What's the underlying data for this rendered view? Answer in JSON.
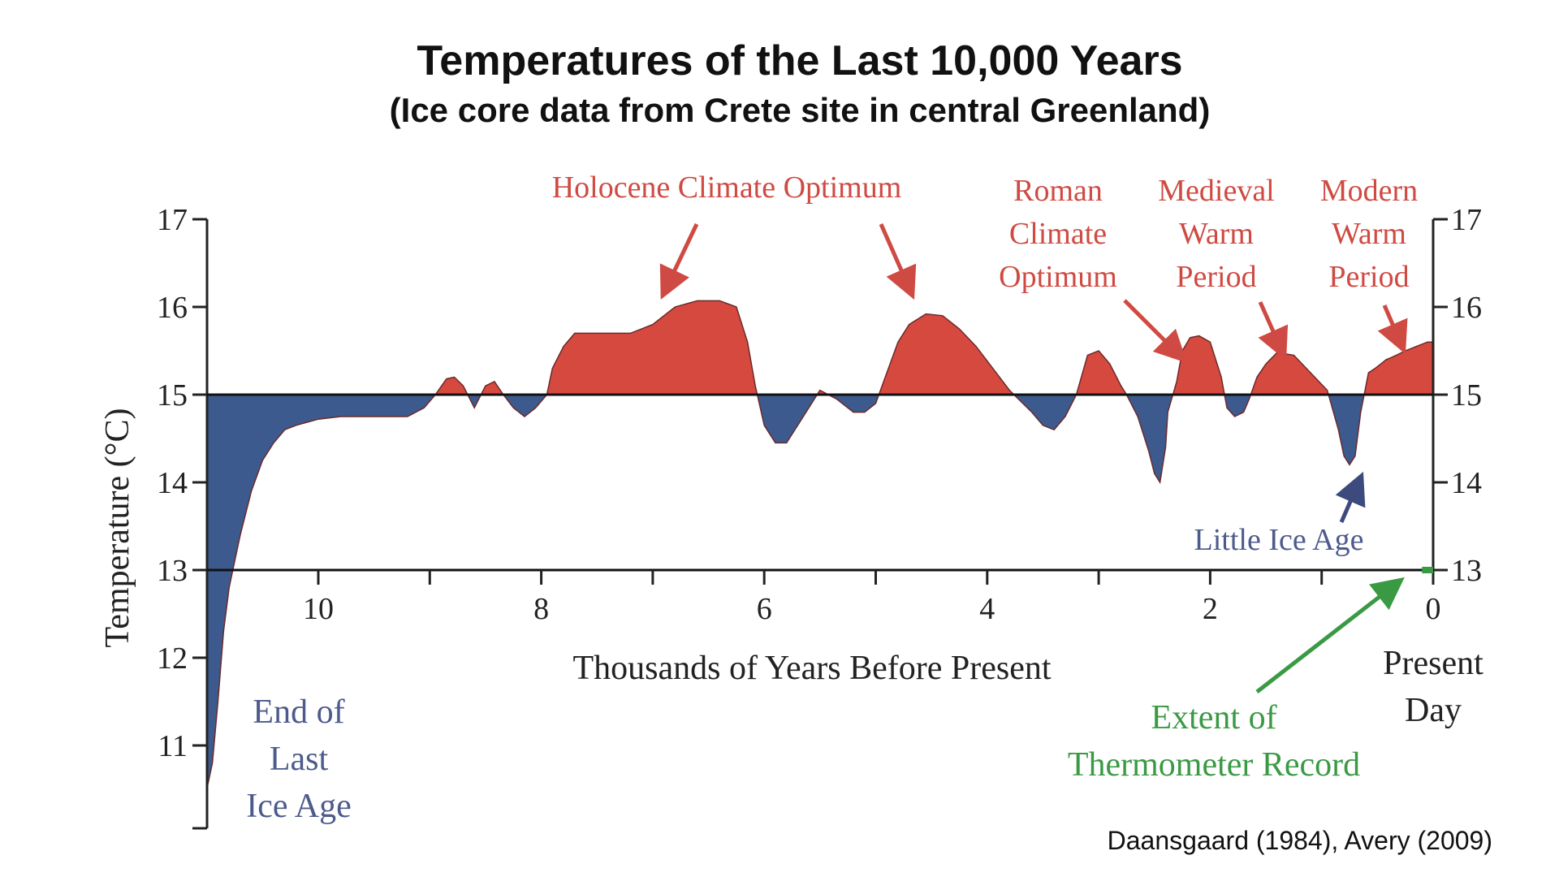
{
  "chart_data": {
    "type": "area",
    "title": "Temperatures of the Last 10,000 Years",
    "subtitle": "(Ice core data from Crete site in central Greenland)",
    "xlabel": "Thousands of Years Before Present",
    "ylabel": "Temperature (°C)",
    "xlim": [
      11,
      0
    ],
    "ylim": [
      10.3,
      17
    ],
    "baseline": 15,
    "x_ticks": [
      10,
      8,
      6,
      4,
      2,
      0
    ],
    "x_tick_labels": [
      "10",
      "8",
      "6",
      "4",
      "2",
      "0"
    ],
    "y_ticks": [
      17,
      16,
      15,
      14,
      13,
      12,
      11
    ],
    "y_tick_labels": [
      "17",
      "16",
      "15",
      "14",
      "13",
      "12",
      "11"
    ],
    "y_ticks_right": [
      17,
      16,
      15,
      14,
      13
    ],
    "y_tick_labels_right": [
      "17",
      "16",
      "15",
      "14",
      "13"
    ],
    "colors": {
      "above": "#d6493f",
      "below": "#3c5a8e",
      "annot_red": "#cf4a42",
      "annot_blue": "#4d5a8c",
      "annot_green": "#3a9a44",
      "axis": "#222222"
    },
    "series": [
      {
        "name": "Temperature",
        "x": [
          11.0,
          10.95,
          10.9,
          10.85,
          10.8,
          10.75,
          10.7,
          10.6,
          10.5,
          10.4,
          10.3,
          10.2,
          10.0,
          9.8,
          9.5,
          9.2,
          9.05,
          8.95,
          8.85,
          8.78,
          8.7,
          8.6,
          8.5,
          8.42,
          8.34,
          8.25,
          8.15,
          8.05,
          7.95,
          7.9,
          7.8,
          7.7,
          7.6,
          7.45,
          7.2,
          7.0,
          6.8,
          6.6,
          6.4,
          6.25,
          6.15,
          6.08,
          6.0,
          5.9,
          5.8,
          5.65,
          5.5,
          5.35,
          5.2,
          5.1,
          5.0,
          4.9,
          4.8,
          4.7,
          4.55,
          4.4,
          4.25,
          4.1,
          3.95,
          3.8,
          3.6,
          3.5,
          3.4,
          3.3,
          3.2,
          3.1,
          3.0,
          2.9,
          2.8,
          2.75,
          2.65,
          2.55,
          2.5,
          2.45,
          2.4,
          2.38,
          2.3,
          2.25,
          2.18,
          2.1,
          2.0,
          1.9,
          1.85,
          1.78,
          1.7,
          1.65,
          1.58,
          1.5,
          1.4,
          1.25,
          1.1,
          0.95,
          0.85,
          0.8,
          0.75,
          0.7,
          0.65,
          0.58,
          0.52,
          0.47,
          0.42,
          0.38,
          0.33,
          0.25,
          0.15,
          0.05,
          0.0
        ],
        "y": [
          10.5,
          10.8,
          11.5,
          12.3,
          12.8,
          13.1,
          13.4,
          13.9,
          14.25,
          14.45,
          14.6,
          14.65,
          14.72,
          14.75,
          14.75,
          14.75,
          14.85,
          15.0,
          15.18,
          15.2,
          15.1,
          14.85,
          15.1,
          15.15,
          15.0,
          14.85,
          14.75,
          14.85,
          15.0,
          15.3,
          15.55,
          15.7,
          15.7,
          15.7,
          15.7,
          15.8,
          16.0,
          16.07,
          16.07,
          16.0,
          15.6,
          15.1,
          14.65,
          14.45,
          14.45,
          14.75,
          15.05,
          14.95,
          14.8,
          14.8,
          14.9,
          15.25,
          15.6,
          15.8,
          15.92,
          15.9,
          15.75,
          15.55,
          15.3,
          15.05,
          14.8,
          14.65,
          14.6,
          14.75,
          15.0,
          15.45,
          15.5,
          15.35,
          15.1,
          15.0,
          14.75,
          14.35,
          14.1,
          14.0,
          14.4,
          14.8,
          15.15,
          15.5,
          15.65,
          15.67,
          15.6,
          15.2,
          14.85,
          14.75,
          14.8,
          14.95,
          15.2,
          15.35,
          15.48,
          15.45,
          15.25,
          15.05,
          14.6,
          14.3,
          14.2,
          14.3,
          14.8,
          15.25,
          15.3,
          15.35,
          15.4,
          15.42,
          15.45,
          15.5,
          15.55,
          15.6,
          15.6
        ]
      }
    ],
    "annotations": {
      "holocene": "Holocene Climate Optimum",
      "roman": [
        "Roman",
        "Climate",
        "Optimum"
      ],
      "medieval": [
        "Medieval",
        "Warm",
        "Period"
      ],
      "modern": [
        "Modern",
        "Warm",
        "Period"
      ],
      "little_ice_age": "Little Ice Age",
      "end_ice_age": [
        "End of",
        "Last",
        "Ice Age"
      ],
      "present_day": [
        "Present",
        "Day"
      ],
      "thermometer": [
        "Extent of",
        "Thermometer Record"
      ],
      "source": "Daansgaard (1984), Avery (2009)"
    }
  }
}
